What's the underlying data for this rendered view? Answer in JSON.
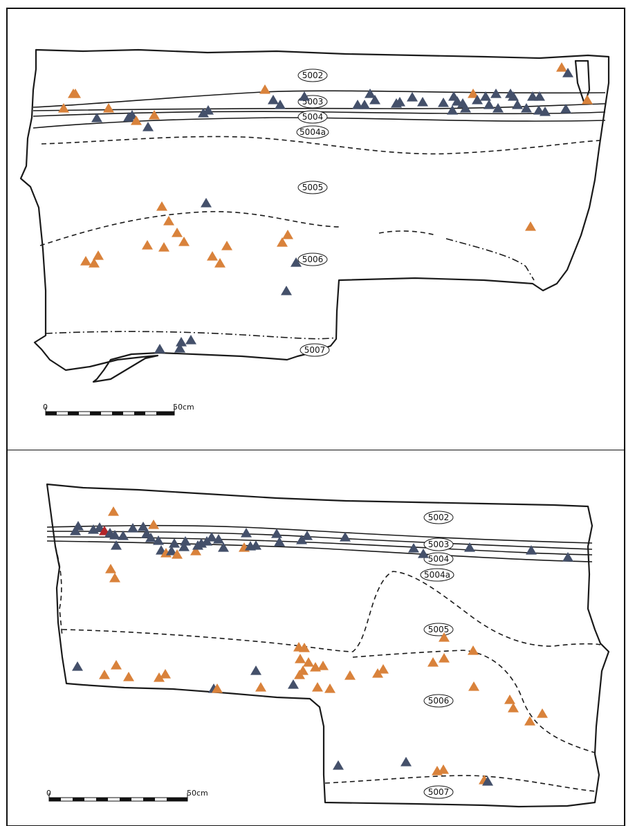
{
  "colors": {
    "orange": "#d9823b",
    "blue": "#44506a",
    "red": "#b3262a"
  },
  "top": {
    "labels": [
      "5002",
      "5003",
      "5004",
      "5004a",
      "5005",
      "5006",
      "5007"
    ],
    "scale": {
      "start": "0",
      "end": "50cm"
    }
  },
  "bottom": {
    "labels": [
      "5002",
      "5003",
      "5004",
      "5004a",
      "5005",
      "5006",
      "5007"
    ],
    "scale": {
      "start": "0",
      "end": "50cm"
    }
  }
}
